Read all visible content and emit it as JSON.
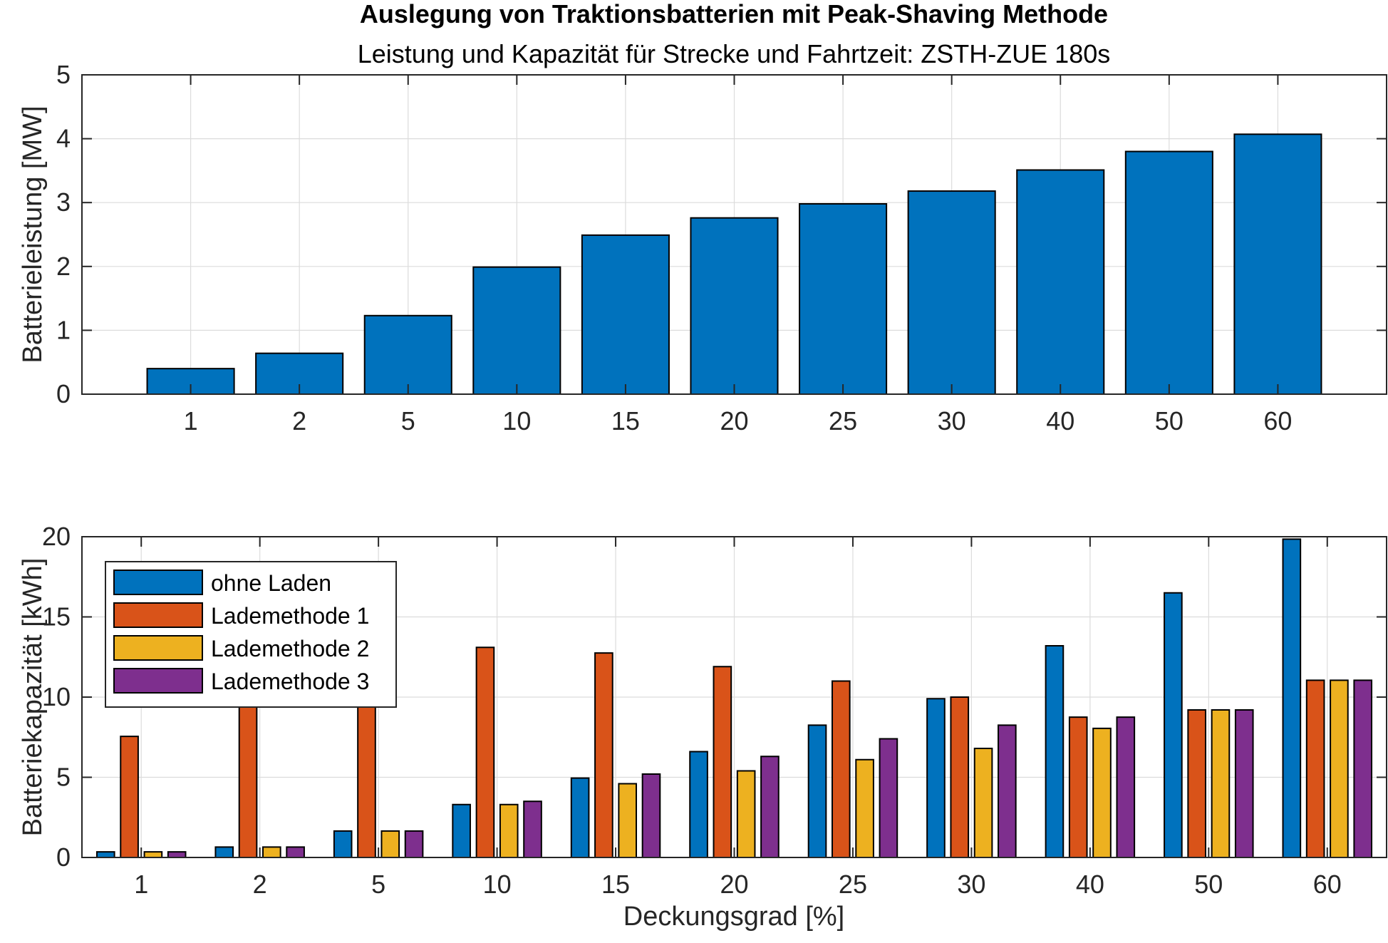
{
  "title": "Auslegung von Traktionsbatterien mit Peak-Shaving Methode",
  "subtitle": "Leistung und Kapazität für Strecke und Fahrtzeit: ZSTH-ZUE 180s",
  "chart_data": [
    {
      "type": "bar",
      "categories": [
        "1",
        "2",
        "5",
        "10",
        "15",
        "20",
        "25",
        "30",
        "40",
        "50",
        "60"
      ],
      "series": [
        {
          "values": [
            0.4,
            0.64,
            1.23,
            1.99,
            2.49,
            2.76,
            2.98,
            3.18,
            3.51,
            3.8,
            4.07
          ],
          "color": "#0072BD"
        }
      ],
      "ylabel": "Batterieleistung [MW]",
      "xlabel": "",
      "ylim": [
        0,
        5
      ],
      "yticks": [
        0,
        1,
        2,
        3,
        4,
        5
      ],
      "grid": true
    },
    {
      "type": "bar",
      "categories": [
        "1",
        "2",
        "5",
        "10",
        "15",
        "20",
        "25",
        "30",
        "40",
        "50",
        "60"
      ],
      "series": [
        {
          "name": "ohne Laden",
          "values": [
            0.35,
            0.65,
            1.65,
            3.3,
            4.95,
            6.6,
            8.25,
            9.9,
            13.2,
            16.5,
            19.85
          ],
          "color": "#0072BD"
        },
        {
          "name": "Lademethode 1",
          "values": [
            7.55,
            9.8,
            10.0,
            13.1,
            12.75,
            11.9,
            11.0,
            10.0,
            8.75,
            9.2,
            11.05
          ],
          "color": "#D95319"
        },
        {
          "name": "Lademethode 2",
          "values": [
            0.35,
            0.65,
            1.65,
            3.3,
            4.6,
            5.4,
            6.1,
            6.8,
            8.05,
            9.2,
            11.05
          ],
          "color": "#EDB120"
        },
        {
          "name": "Lademethode 3",
          "values": [
            0.35,
            0.65,
            1.65,
            3.5,
            5.2,
            6.3,
            7.4,
            8.25,
            8.75,
            9.2,
            11.05
          ],
          "color": "#7E2F8E"
        }
      ],
      "ylabel": "Batteriekapazität [kWh]",
      "xlabel": "Deckungsgrad [%]",
      "ylim": [
        0,
        20
      ],
      "yticks": [
        0,
        5,
        10,
        15,
        20
      ],
      "grid": true,
      "legend_position": "top-left"
    }
  ]
}
